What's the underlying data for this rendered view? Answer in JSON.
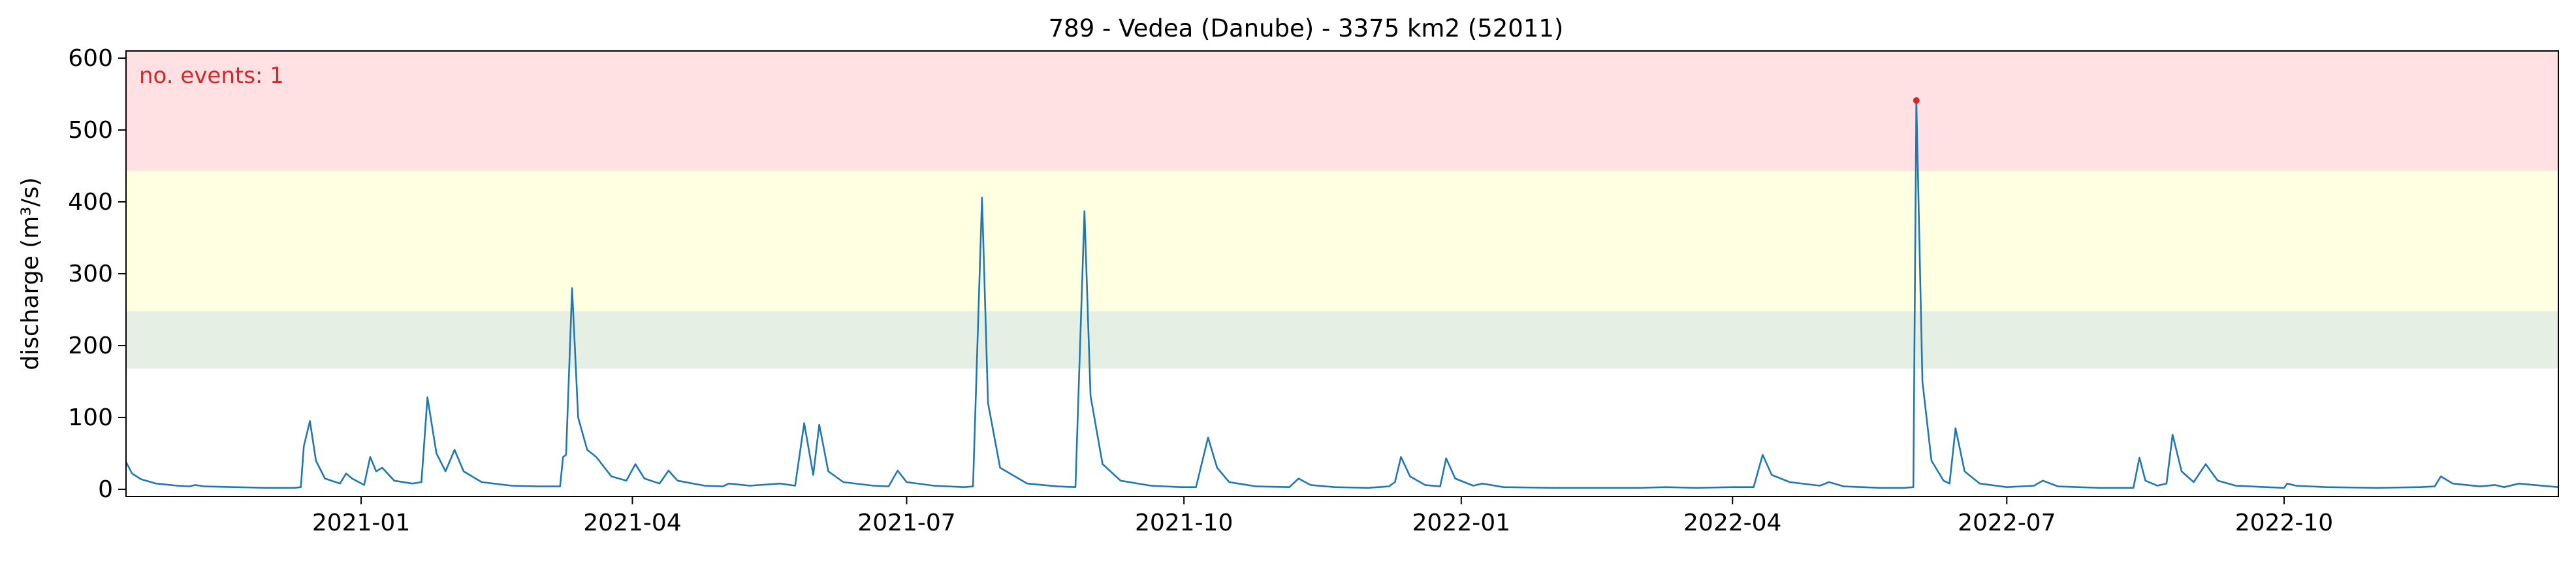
{
  "chart_data": {
    "type": "line",
    "title": "789 - Vedea (Danube) - 3375 km2 (52011)",
    "xlabel": "",
    "ylabel": "discharge (m³/s)",
    "ylim": [
      -10,
      610
    ],
    "xlim": [
      "2020-10-15",
      "2022-12-31"
    ],
    "grid": false,
    "annotation": {
      "text": "no. events: 1",
      "color": "#d62728"
    },
    "y_ticks": [
      0,
      100,
      200,
      300,
      400,
      500,
      600
    ],
    "x_ticks": [
      {
        "date": "2021-01-01",
        "label": "2021-01"
      },
      {
        "date": "2021-04-01",
        "label": "2021-04"
      },
      {
        "date": "2021-07-01",
        "label": "2021-07"
      },
      {
        "date": "2021-10-01",
        "label": "2021-10"
      },
      {
        "date": "2022-01-01",
        "label": "2022-01"
      },
      {
        "date": "2022-04-01",
        "label": "2022-04"
      },
      {
        "date": "2022-07-01",
        "label": "2022-07"
      },
      {
        "date": "2022-10-01",
        "label": "2022-10"
      }
    ],
    "threshold_bands": [
      {
        "from": 168,
        "to": 248,
        "color": "#e6efe3"
      },
      {
        "from": 248,
        "to": 443,
        "color": "#ffffe2"
      },
      {
        "from": 443,
        "to": 610,
        "color": "#ffe0e3"
      }
    ],
    "series": [
      {
        "color": "#1f77b4",
        "points": [
          [
            "2020-10-15",
            38
          ],
          [
            "2020-10-17",
            22
          ],
          [
            "2020-10-20",
            14
          ],
          [
            "2020-10-25",
            8
          ],
          [
            "2020-11-01",
            5
          ],
          [
            "2020-11-05",
            4
          ],
          [
            "2020-11-07",
            6
          ],
          [
            "2020-11-10",
            4
          ],
          [
            "2020-11-20",
            3
          ],
          [
            "2020-12-01",
            2
          ],
          [
            "2020-12-10",
            2
          ],
          [
            "2020-12-12",
            3
          ],
          [
            "2020-12-13",
            60
          ],
          [
            "2020-12-15",
            95
          ],
          [
            "2020-12-17",
            40
          ],
          [
            "2020-12-20",
            15
          ],
          [
            "2020-12-25",
            8
          ],
          [
            "2020-12-27",
            22
          ],
          [
            "2020-12-29",
            15
          ],
          [
            "2021-01-02",
            6
          ],
          [
            "2021-01-04",
            45
          ],
          [
            "2021-01-06",
            25
          ],
          [
            "2021-01-08",
            30
          ],
          [
            "2021-01-12",
            12
          ],
          [
            "2021-01-18",
            8
          ],
          [
            "2021-01-21",
            10
          ],
          [
            "2021-01-23",
            128
          ],
          [
            "2021-01-26",
            50
          ],
          [
            "2021-01-29",
            25
          ],
          [
            "2021-02-01",
            55
          ],
          [
            "2021-02-04",
            25
          ],
          [
            "2021-02-10",
            10
          ],
          [
            "2021-02-20",
            5
          ],
          [
            "2021-03-01",
            4
          ],
          [
            "2021-03-08",
            4
          ],
          [
            "2021-03-09",
            45
          ],
          [
            "2021-03-10",
            48
          ],
          [
            "2021-03-12",
            280
          ],
          [
            "2021-03-14",
            100
          ],
          [
            "2021-03-17",
            55
          ],
          [
            "2021-03-20",
            45
          ],
          [
            "2021-03-25",
            18
          ],
          [
            "2021-03-30",
            12
          ],
          [
            "2021-04-02",
            35
          ],
          [
            "2021-04-05",
            15
          ],
          [
            "2021-04-10",
            8
          ],
          [
            "2021-04-13",
            26
          ],
          [
            "2021-04-16",
            12
          ],
          [
            "2021-04-25",
            5
          ],
          [
            "2021-05-01",
            4
          ],
          [
            "2021-05-03",
            8
          ],
          [
            "2021-05-10",
            5
          ],
          [
            "2021-05-20",
            8
          ],
          [
            "2021-05-25",
            5
          ],
          [
            "2021-05-28",
            92
          ],
          [
            "2021-05-31",
            20
          ],
          [
            "2021-06-02",
            90
          ],
          [
            "2021-06-05",
            25
          ],
          [
            "2021-06-10",
            10
          ],
          [
            "2021-06-20",
            5
          ],
          [
            "2021-06-25",
            4
          ],
          [
            "2021-06-28",
            26
          ],
          [
            "2021-07-01",
            10
          ],
          [
            "2021-07-10",
            5
          ],
          [
            "2021-07-20",
            3
          ],
          [
            "2021-07-23",
            4
          ],
          [
            "2021-07-26",
            406
          ],
          [
            "2021-07-28",
            120
          ],
          [
            "2021-08-01",
            30
          ],
          [
            "2021-08-10",
            8
          ],
          [
            "2021-08-20",
            4
          ],
          [
            "2021-08-26",
            3
          ],
          [
            "2021-08-29",
            387
          ],
          [
            "2021-08-31",
            130
          ],
          [
            "2021-09-04",
            35
          ],
          [
            "2021-09-10",
            12
          ],
          [
            "2021-09-20",
            5
          ],
          [
            "2021-09-30",
            3
          ],
          [
            "2021-10-05",
            3
          ],
          [
            "2021-10-09",
            72
          ],
          [
            "2021-10-12",
            30
          ],
          [
            "2021-10-16",
            10
          ],
          [
            "2021-10-25",
            4
          ],
          [
            "2021-11-05",
            3
          ],
          [
            "2021-11-08",
            15
          ],
          [
            "2021-11-12",
            6
          ],
          [
            "2021-11-20",
            3
          ],
          [
            "2021-12-01",
            2
          ],
          [
            "2021-12-08",
            4
          ],
          [
            "2021-12-10",
            10
          ],
          [
            "2021-12-12",
            45
          ],
          [
            "2021-12-15",
            18
          ],
          [
            "2021-12-20",
            6
          ],
          [
            "2021-12-25",
            4
          ],
          [
            "2021-12-27",
            43
          ],
          [
            "2021-12-30",
            15
          ],
          [
            "2022-01-05",
            5
          ],
          [
            "2022-01-08",
            8
          ],
          [
            "2022-01-15",
            3
          ],
          [
            "2022-02-01",
            2
          ],
          [
            "2022-03-01",
            2
          ],
          [
            "2022-03-10",
            3
          ],
          [
            "2022-03-20",
            2
          ],
          [
            "2022-04-01",
            3
          ],
          [
            "2022-04-08",
            3
          ],
          [
            "2022-04-11",
            48
          ],
          [
            "2022-04-14",
            20
          ],
          [
            "2022-04-20",
            10
          ],
          [
            "2022-04-30",
            5
          ],
          [
            "2022-05-03",
            10
          ],
          [
            "2022-05-08",
            4
          ],
          [
            "2022-05-20",
            2
          ],
          [
            "2022-05-28",
            2
          ],
          [
            "2022-05-31",
            3
          ],
          [
            "2022-06-01",
            541
          ],
          [
            "2022-06-03",
            150
          ],
          [
            "2022-06-06",
            40
          ],
          [
            "2022-06-10",
            12
          ],
          [
            "2022-06-12",
            8
          ],
          [
            "2022-06-14",
            85
          ],
          [
            "2022-06-17",
            25
          ],
          [
            "2022-06-22",
            8
          ],
          [
            "2022-07-01",
            3
          ],
          [
            "2022-07-10",
            5
          ],
          [
            "2022-07-13",
            12
          ],
          [
            "2022-07-18",
            4
          ],
          [
            "2022-08-01",
            2
          ],
          [
            "2022-08-12",
            2
          ],
          [
            "2022-08-14",
            44
          ],
          [
            "2022-08-16",
            12
          ],
          [
            "2022-08-20",
            5
          ],
          [
            "2022-08-23",
            8
          ],
          [
            "2022-08-25",
            76
          ],
          [
            "2022-08-28",
            25
          ],
          [
            "2022-09-01",
            10
          ],
          [
            "2022-09-05",
            35
          ],
          [
            "2022-09-09",
            12
          ],
          [
            "2022-09-15",
            5
          ],
          [
            "2022-09-25",
            3
          ],
          [
            "2022-10-01",
            2
          ],
          [
            "2022-10-02",
            8
          ],
          [
            "2022-10-05",
            5
          ],
          [
            "2022-10-15",
            3
          ],
          [
            "2022-11-01",
            2
          ],
          [
            "2022-11-15",
            3
          ],
          [
            "2022-11-20",
            4
          ],
          [
            "2022-11-22",
            18
          ],
          [
            "2022-11-26",
            8
          ],
          [
            "2022-12-05",
            4
          ],
          [
            "2022-12-10",
            6
          ],
          [
            "2022-12-13",
            3
          ],
          [
            "2022-12-18",
            8
          ],
          [
            "2022-12-23",
            6
          ],
          [
            "2022-12-31",
            3
          ]
        ]
      }
    ],
    "events": [
      {
        "date": "2022-06-01",
        "value": 541,
        "color": "#d62728"
      }
    ]
  }
}
